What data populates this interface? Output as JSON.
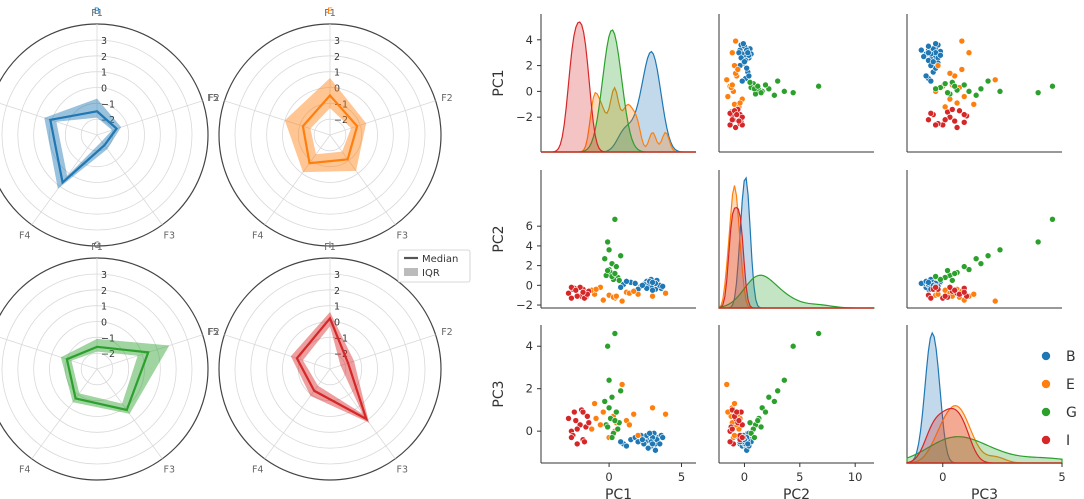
{
  "colors": {
    "B": "#1f77b4",
    "E": "#ff7f0e",
    "G": "#2ca02c",
    "I": "#d62728",
    "grid": "#d9d9d9",
    "axis": "#333333",
    "text": "#555555"
  },
  "chart_data": [
    {
      "type": "radar",
      "features": [
        "F1",
        "F2",
        "F3",
        "F4",
        "F5"
      ],
      "rlim": [
        -3,
        3
      ],
      "rticks": [
        "3",
        "2",
        "1",
        "0",
        "−1",
        "−2"
      ],
      "legend": {
        "median": "Median",
        "iqr": "IQR"
      },
      "panels": [
        {
          "title": "B",
          "color_key": "B",
          "median": [
            -1.5,
            -1.7,
            -2.2,
            0.7,
            0.1
          ],
          "iqr_low": [
            -1.9,
            -2.0,
            -2.5,
            0.2,
            -0.3
          ],
          "iqr_high": [
            -0.7,
            -1.4,
            -1.9,
            1.2,
            0.5
          ]
        },
        {
          "title": "E",
          "color_key": "E",
          "median": [
            -0.5,
            -1.2,
            -1.1,
            -0.8,
            -1.2
          ],
          "iqr_low": [
            -1.3,
            -1.6,
            -1.7,
            -1.5,
            -1.7
          ],
          "iqr_high": [
            0.6,
            -0.6,
            -0.2,
            -0.1,
            0.0
          ]
        },
        {
          "title": "G",
          "color_key": "G",
          "median": [
            -1.6,
            0.4,
            0.2,
            -0.7,
            -1.0
          ],
          "iqr_low": [
            -1.9,
            -0.3,
            -0.3,
            -1.1,
            -1.3
          ],
          "iqr_high": [
            -1.1,
            1.8,
            0.5,
            -0.4,
            -0.6
          ]
        },
        {
          "title": "I",
          "color_key": "I",
          "median": [
            0.2,
            -1.8,
            0.9,
            -1.3,
            -0.8
          ],
          "iqr_low": [
            -0.3,
            -2.3,
            0.5,
            -1.7,
            -1.2
          ],
          "iqr_high": [
            0.6,
            -1.4,
            1.2,
            -0.9,
            -0.4
          ]
        }
      ]
    },
    {
      "type": "scatter",
      "variables": [
        "PC1",
        "PC2",
        "PC3"
      ],
      "groups": [
        "B",
        "E",
        "G",
        "I"
      ],
      "limits": {
        "PC1": [
          -4.7,
          6.0
        ],
        "PC2": [
          -2.3,
          11.7
        ],
        "PC3": [
          -1.5,
          5.0
        ]
      },
      "ticks": {
        "PC1": [
          "−2",
          "0",
          "2",
          "4"
        ],
        "PC2": [
          "−2",
          "0",
          "2",
          "4",
          "6"
        ],
        "PC3": [
          "0",
          "2",
          "4"
        ]
      },
      "xticks": {
        "PC1": [
          "0",
          "5"
        ],
        "PC2": [
          "0",
          "5",
          "10"
        ],
        "PC3": [
          "0",
          "5"
        ]
      },
      "points": {
        "B": [
          [
            3.0,
            0.2,
            -0.5
          ],
          [
            2.8,
            0.0,
            -0.2
          ],
          [
            3.2,
            -0.4,
            -0.6
          ],
          [
            2.6,
            0.4,
            -0.4
          ],
          [
            3.4,
            0.1,
            -0.3
          ],
          [
            2.9,
            -0.2,
            -0.7
          ],
          [
            3.1,
            0.3,
            -0.1
          ],
          [
            2.5,
            -0.1,
            -0.5
          ],
          [
            3.3,
            0.5,
            -0.4
          ],
          [
            2.7,
            0.2,
            -0.8
          ],
          [
            3.6,
            -0.3,
            -0.2
          ],
          [
            2.4,
            0.1,
            -0.6
          ],
          [
            3.0,
            -0.5,
            -0.3
          ],
          [
            2.9,
            0.6,
            -0.5
          ],
          [
            3.5,
            0.0,
            -0.6
          ],
          [
            2.6,
            -0.3,
            -0.2
          ],
          [
            3.2,
            0.2,
            -0.9
          ],
          [
            2.8,
            0.4,
            -0.1
          ],
          [
            1.5,
            0.3,
            -0.4
          ],
          [
            1.0,
            0.1,
            -0.6
          ],
          [
            2.2,
            -0.1,
            -0.2
          ],
          [
            0.8,
            -0.2,
            -0.5
          ],
          [
            1.8,
            0.2,
            -0.3
          ],
          [
            2.0,
            -0.4,
            -0.5
          ],
          [
            1.2,
            0.4,
            -0.7
          ],
          [
            2.3,
            0.0,
            -0.4
          ],
          [
            3.7,
            -0.1,
            -0.3
          ],
          [
            3.0,
            0.3,
            -0.6
          ]
        ],
        "E": [
          [
            3.9,
            -0.8,
            0.8
          ],
          [
            3.0,
            -1.1,
            1.1
          ],
          [
            1.2,
            -0.7,
            0.5
          ],
          [
            0.4,
            -1.3,
            0.0
          ],
          [
            -1.0,
            -0.9,
            1.3
          ],
          [
            0.9,
            -1.6,
            2.2
          ],
          [
            -0.6,
            -0.2,
            0.3
          ],
          [
            -1.2,
            -0.5,
            0.1
          ],
          [
            0.0,
            -1.0,
            -0.3
          ],
          [
            0.3,
            -1.2,
            0.7
          ],
          [
            1.4,
            -0.8,
            0.3
          ],
          [
            -0.4,
            -1.5,
            0.9
          ],
          [
            2.0,
            -0.9,
            -0.2
          ],
          [
            -0.9,
            -0.4,
            0.6
          ],
          [
            0.5,
            -1.1,
            0.4
          ],
          [
            1.7,
            -0.6,
            0.8
          ]
        ],
        "G": [
          [
            0.4,
            6.7,
            4.6
          ],
          [
            -0.1,
            4.4,
            4.0
          ],
          [
            0.0,
            3.6,
            2.4
          ],
          [
            0.8,
            3.0,
            1.9
          ],
          [
            -0.3,
            2.7,
            1.4
          ],
          [
            0.2,
            2.2,
            1.6
          ],
          [
            0.0,
            1.6,
            1.1
          ],
          [
            0.5,
            1.9,
            0.9
          ],
          [
            0.1,
            1.3,
            0.6
          ],
          [
            -0.2,
            1.0,
            0.3
          ],
          [
            0.6,
            0.8,
            0.1
          ],
          [
            0.3,
            0.6,
            -0.1
          ],
          [
            0.7,
            0.5,
            0.4
          ],
          [
            -0.1,
            1.5,
            0.2
          ],
          [
            0.2,
            0.9,
            -0.3
          ],
          [
            0.4,
            1.2,
            0.5
          ]
        ],
        "I": [
          [
            -2.8,
            -0.8,
            0.6
          ],
          [
            -2.6,
            -1.3,
            0.0
          ],
          [
            -2.2,
            -1.0,
            -0.6
          ],
          [
            -1.6,
            -1.2,
            0.2
          ],
          [
            -2.4,
            -0.3,
            0.9
          ],
          [
            -1.8,
            -0.4,
            -0.4
          ],
          [
            -1.9,
            -1.1,
            1.0
          ],
          [
            -1.4,
            -0.6,
            0.4
          ],
          [
            -2.5,
            -0.4,
            -0.2
          ],
          [
            -2.0,
            -0.2,
            0.3
          ],
          [
            -1.7,
            -1.3,
            -0.5
          ],
          [
            -1.5,
            -0.9,
            0.7
          ],
          [
            -2.2,
            -1.1,
            0.1
          ],
          [
            -2.6,
            -0.2,
            -0.3
          ],
          [
            -1.8,
            -0.7,
            0.9
          ],
          [
            -2.3,
            -0.5,
            0.5
          ]
        ]
      },
      "legend_labels": [
        "B",
        "E",
        "G",
        "I"
      ]
    }
  ]
}
